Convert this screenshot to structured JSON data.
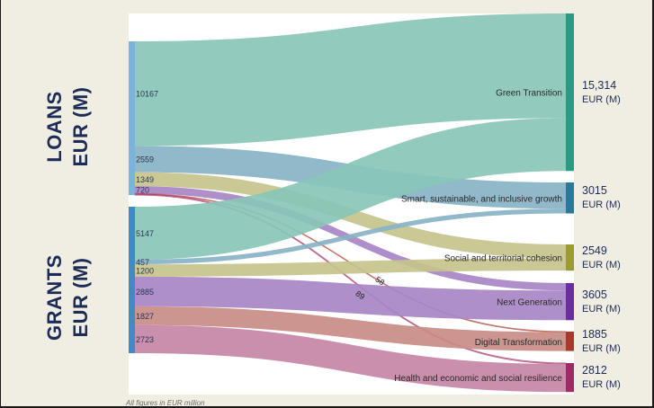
{
  "left_labels": {
    "loans": [
      "LOANS",
      "EUR (M)"
    ],
    "grants": [
      "GRANTS",
      "EUR (M)"
    ]
  },
  "footnote": "All figures in EUR million",
  "chart_data": {
    "type": "sankey",
    "units": "EUR (M)",
    "sources": [
      {
        "name": "Loans",
        "color": "#7ab4dc"
      },
      {
        "name": "Grants",
        "color": "#3d8cc4"
      }
    ],
    "targets": [
      {
        "name": "Green Transition",
        "total": 15314,
        "total_label": "15,314",
        "unit_label": "EUR (M)",
        "node_color": "#2a9a82",
        "link_color": "#89c5b8"
      },
      {
        "name": "Smart, sustainable, and inclusive growth",
        "total": 3015,
        "total_label": "3015",
        "unit_label": "EUR (M)",
        "node_color": "#2c7896",
        "link_color": "#88b3c6"
      },
      {
        "name": "Social and territorial cohesion",
        "total": 2549,
        "total_label": "2549",
        "unit_label": "EUR (M)",
        "node_color": "#9c9a34",
        "link_color": "#c6c38c"
      },
      {
        "name": "Next Generation",
        "total": 3605,
        "total_label": "3605",
        "unit_label": "EUR (M)",
        "node_color": "#6a2ea0",
        "link_color": "#a886c6"
      },
      {
        "name": "Digital Transformation",
        "total": 1885,
        "total_label": "1885",
        "unit_label": "EUR (M)",
        "node_color": "#a83a2c",
        "link_color": "#c88c86"
      },
      {
        "name": "Health and economic and social resilience",
        "total": 2812,
        "total_label": "2812",
        "unit_label": "EUR (M)",
        "node_color": "#a02a64",
        "link_color": "#c686a6"
      }
    ],
    "flows": [
      {
        "source": "Loans",
        "target": "Green Transition",
        "value": 10167,
        "label": "10167"
      },
      {
        "source": "Loans",
        "target": "Smart, sustainable, and inclusive growth",
        "value": 2559,
        "label": "2559"
      },
      {
        "source": "Loans",
        "target": "Social and territorial cohesion",
        "value": 1349,
        "label": "1349"
      },
      {
        "source": "Loans",
        "target": "Next Generation",
        "value": 720,
        "label": "720"
      },
      {
        "source": "Loans",
        "target": "Digital Transformation",
        "value": 58,
        "label": "58"
      },
      {
        "source": "Loans",
        "target": "Health and economic and social resilience",
        "value": 89,
        "label": "89"
      },
      {
        "source": "Grants",
        "target": "Green Transition",
        "value": 5147,
        "label": "5147"
      },
      {
        "source": "Grants",
        "target": "Smart, sustainable, and inclusive growth",
        "value": 457,
        "label": "457"
      },
      {
        "source": "Grants",
        "target": "Social and territorial cohesion",
        "value": 1200,
        "label": "1200"
      },
      {
        "source": "Grants",
        "target": "Next Generation",
        "value": 2885,
        "label": "2885"
      },
      {
        "source": "Grants",
        "target": "Digital Transformation",
        "value": 1827,
        "label": "1827"
      },
      {
        "source": "Grants",
        "target": "Health and economic and social resilience",
        "value": 2723,
        "label": "2723"
      }
    ]
  }
}
